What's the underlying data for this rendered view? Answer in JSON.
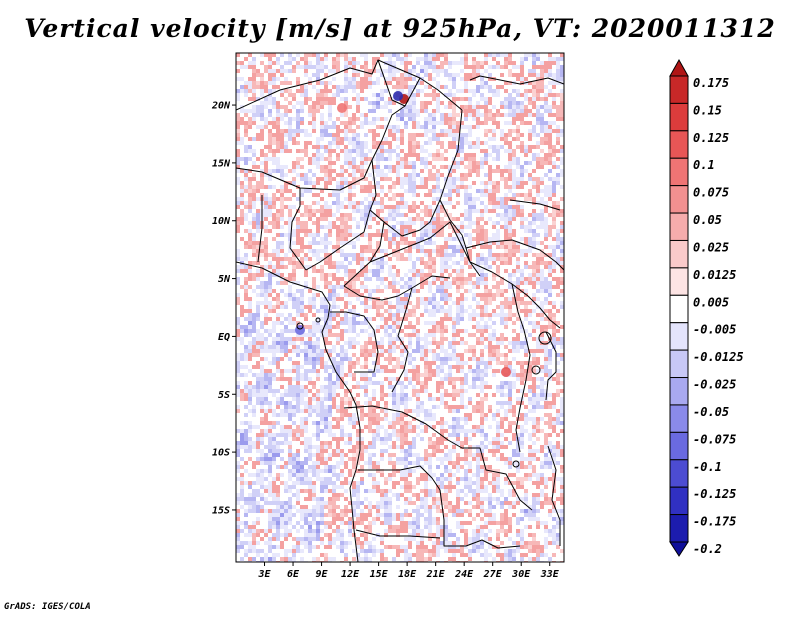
{
  "chart_data": {
    "type": "heatmap",
    "title": "Vertical velocity [m/s] at 925hPa, VT: 2020011312",
    "variable": "Vertical velocity",
    "units": "m/s",
    "level": "925hPa",
    "valid_time": "2020011312",
    "xlim": [
      0,
      34.5
    ],
    "ylim": [
      -19.5,
      24.5
    ],
    "x_ticks": [
      {
        "value": 3,
        "label": "3E"
      },
      {
        "value": 6,
        "label": "6E"
      },
      {
        "value": 9,
        "label": "9E"
      },
      {
        "value": 12,
        "label": "12E"
      },
      {
        "value": 15,
        "label": "15E"
      },
      {
        "value": 18,
        "label": "18E"
      },
      {
        "value": 21,
        "label": "21E"
      },
      {
        "value": 24,
        "label": "24E"
      },
      {
        "value": 27,
        "label": "27E"
      },
      {
        "value": 30,
        "label": "30E"
      },
      {
        "value": 33,
        "label": "33E"
      }
    ],
    "y_ticks": [
      {
        "value": 20,
        "label": "20N"
      },
      {
        "value": 15,
        "label": "15N"
      },
      {
        "value": 10,
        "label": "10N"
      },
      {
        "value": 5,
        "label": "5N"
      },
      {
        "value": 0,
        "label": "EQ"
      },
      {
        "value": -5,
        "label": "5S"
      },
      {
        "value": -10,
        "label": "10S"
      },
      {
        "value": -15,
        "label": "15S"
      }
    ],
    "colorbar": {
      "labels": [
        "0.175",
        "0.15",
        "0.125",
        "0.1",
        "0.075",
        "0.05",
        "0.025",
        "0.0125",
        "0.005",
        "-0.005",
        "-0.0125",
        "-0.025",
        "-0.05",
        "-0.075",
        "-0.1",
        "-0.125",
        "-0.175",
        "-0.2"
      ],
      "colors": [
        "#b01616",
        "#c82828",
        "#dc3c3c",
        "#e85656",
        "#ef7474",
        "#f29090",
        "#f6acac",
        "#facaca",
        "#fde4e4",
        "#ffffff",
        "#e4e4fc",
        "#c8c8f6",
        "#a9a9f0",
        "#8a8aea",
        "#6a6ae0",
        "#4c4cd2",
        "#3030c2",
        "#1c1cae",
        "#10109a"
      ]
    }
  },
  "footer": "GrADS: IGES/COLA"
}
